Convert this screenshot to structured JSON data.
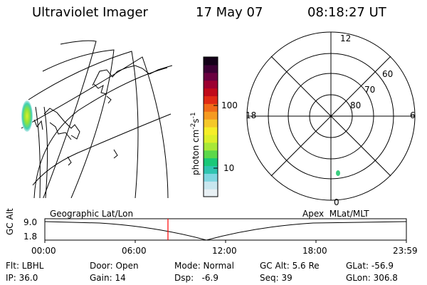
{
  "header": {
    "title": "Ultraviolet Imager",
    "date": "17 May 07",
    "time": "08:18:27 UT"
  },
  "colorbar": {
    "label_main": "photon cm",
    "label_sup1": "-2",
    "label_mid": "s",
    "label_sup2": "-1",
    "tick_100": "100",
    "tick_10": "10",
    "colors": [
      "#e8f0f4",
      "#c8e6ee",
      "#7fd6e0",
      "#2fc4b0",
      "#19c878",
      "#5cd84a",
      "#a8e838",
      "#dcef2a",
      "#f5ee28",
      "#f5c828",
      "#f59a20",
      "#f06a18",
      "#e02a14",
      "#c00a1a",
      "#9c0030",
      "#6a0040",
      "#3c0034",
      "#140018"
    ]
  },
  "polar": {
    "label_12": "12",
    "label_18": "18",
    "label_6": "6",
    "label_0": "0",
    "lat_60": "60",
    "lat_70": "70",
    "lat_80": "80"
  },
  "timeline": {
    "axis_label": "GC Alt",
    "y_top": "9.0",
    "y_bot": "1.8",
    "left_title": "Geographic Lat/Lon",
    "right_title": "Apex  MLat/MLT",
    "x_ticks": [
      "00:00",
      "06:00",
      "12:00",
      "18:00",
      "23:59"
    ],
    "marker_color": "#ff0000"
  },
  "info": {
    "flt": "Flt: LBHL",
    "ip": "IP: 36.0",
    "door": "Door: Open",
    "gain": "Gain: 14",
    "mode": "Mode: Normal",
    "dsp": "Dsp:   -6.9",
    "gcalt": "GC Alt: 5.6 Re",
    "seq": "Seq: 39",
    "glat": "GLat: -56.9",
    "glon": "GLon: 306.8"
  }
}
